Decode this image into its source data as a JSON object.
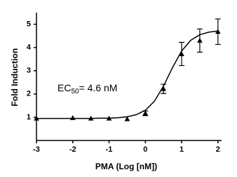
{
  "chart_data": {
    "type": "scatter",
    "x_label": "PMA (Log [nM])",
    "y_label": "Fold Induction",
    "annotation": [
      "EC",
      "50",
      "= 4.6 nM"
    ],
    "xlim": [
      -3,
      2.1
    ],
    "ylim": [
      0,
      5.5
    ],
    "xticks": [
      -3,
      -2,
      -1,
      0,
      1,
      2
    ],
    "yticks": [
      1,
      2,
      3,
      4,
      5
    ],
    "color": "#000000",
    "series": [
      {
        "type": "scatter",
        "x": [
          -3,
          -2,
          -1.5,
          -1,
          -0.5,
          0,
          0.5,
          1,
          1.5,
          2
        ],
        "values": [
          0.95,
          0.97,
          0.95,
          0.95,
          0.92,
          1.17,
          2.22,
          3.72,
          4.3,
          4.68
        ],
        "errors": [
          0,
          0,
          0,
          0,
          0,
          0.1,
          0.2,
          0.5,
          0.5,
          0.55
        ]
      },
      {
        "type": "line",
        "x": [
          -3,
          -2.75,
          -2.5,
          -2.25,
          -2,
          -1.75,
          -1.5,
          -1.25,
          -1,
          -0.75,
          -0.5,
          -0.25,
          0,
          0.25,
          0.5,
          0.75,
          1,
          1.25,
          1.5,
          1.75,
          2
        ],
        "values": [
          0.95,
          0.95,
          0.95,
          0.95,
          0.95,
          0.95,
          0.95,
          0.96,
          0.96,
          0.98,
          1.02,
          1.11,
          1.3,
          1.69,
          2.34,
          3.14,
          3.85,
          4.31,
          4.55,
          4.66,
          4.71
        ]
      }
    ]
  }
}
